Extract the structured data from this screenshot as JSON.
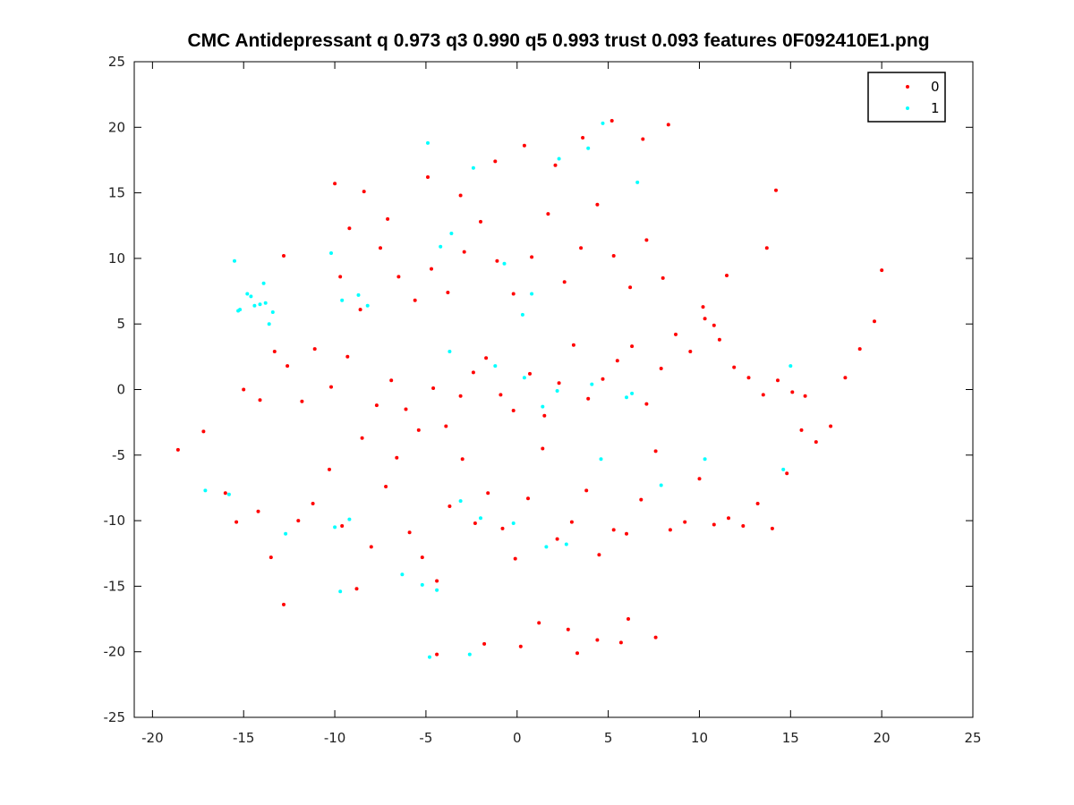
{
  "chart_data": {
    "type": "scatter",
    "title": "CMC Antidepressant q 0.973 q3 0.990 q5 0.993 trust 0.093 features 0F092410E1.png",
    "xlabel": "",
    "ylabel": "",
    "xlim": [
      -21,
      25
    ],
    "ylim": [
      -25,
      25
    ],
    "xticks": [
      -20,
      -15,
      -10,
      -5,
      0,
      5,
      10,
      15,
      20,
      25
    ],
    "yticks": [
      -25,
      -20,
      -15,
      -10,
      -5,
      0,
      5,
      10,
      15,
      20,
      25
    ],
    "grid": false,
    "legend_position": "top-right",
    "series": [
      {
        "name": "0",
        "color": "#ff0000",
        "x": [
          -18.6,
          -17.2,
          -16.0,
          -15.4,
          -14.2,
          -13.5,
          -12.8,
          -12.0,
          -11.2,
          -10.3,
          -9.6,
          -8.8,
          -8.0,
          -7.2,
          -6.6,
          -5.9,
          -5.2,
          -4.4,
          -3.7,
          -3.0,
          -2.3,
          -1.6,
          -0.8,
          -0.1,
          0.6,
          1.4,
          2.2,
          3.0,
          3.8,
          4.5,
          5.3,
          6.0,
          6.8,
          7.6,
          8.4,
          9.2,
          10.0,
          10.8,
          11.6,
          12.4,
          13.2,
          14.0,
          14.8,
          15.6,
          16.4,
          17.2,
          18.0,
          18.8,
          19.6,
          20.0,
          -15.0,
          -14.1,
          -13.3,
          -12.6,
          -11.8,
          -11.1,
          -10.2,
          -9.3,
          -8.5,
          -7.7,
          -6.9,
          -6.1,
          -5.4,
          -4.6,
          -3.9,
          -3.1,
          -2.4,
          -1.7,
          -0.9,
          -0.2,
          0.7,
          1.5,
          2.3,
          3.1,
          3.9,
          4.7,
          5.5,
          6.3,
          7.1,
          7.9,
          8.7,
          9.5,
          10.3,
          11.1,
          11.9,
          12.7,
          13.5,
          14.3,
          15.1,
          15.8,
          -10.0,
          -9.2,
          -8.4,
          -7.5,
          -6.5,
          -5.6,
          -4.7,
          -3.8,
          -2.9,
          -2.0,
          -1.1,
          -0.2,
          0.8,
          1.7,
          2.6,
          3.5,
          4.4,
          5.3,
          6.2,
          7.1,
          8.0,
          10.2,
          10.8,
          11.5,
          13.7,
          14.2,
          -12.8,
          -9.7,
          -8.6,
          -7.1,
          -4.9,
          -3.1,
          -1.2,
          0.4,
          2.1,
          3.6,
          5.2,
          6.9,
          8.3,
          1.2,
          2.8,
          4.4,
          6.1,
          7.6,
          -4.4,
          -1.8,
          0.2,
          3.3,
          5.7
        ],
        "y": [
          -4.6,
          -3.2,
          -7.9,
          -10.1,
          -9.3,
          -12.8,
          -16.4,
          -10.0,
          -8.7,
          -6.1,
          -10.4,
          -15.2,
          -12.0,
          -7.4,
          -5.2,
          -10.9,
          -12.8,
          -14.6,
          -8.9,
          -5.3,
          -10.2,
          -7.9,
          -10.6,
          -12.9,
          -8.3,
          -4.5,
          -11.4,
          -10.1,
          -7.7,
          -12.6,
          -10.7,
          -11.0,
          -8.4,
          -4.7,
          -10.7,
          -10.1,
          -6.8,
          -10.3,
          -9.8,
          -10.4,
          -8.7,
          -10.6,
          -6.4,
          -3.1,
          -4.0,
          -2.8,
          0.9,
          3.1,
          5.2,
          9.1,
          0.0,
          -0.8,
          2.9,
          1.8,
          -0.9,
          3.1,
          0.2,
          2.5,
          -3.7,
          -1.2,
          0.7,
          -1.5,
          -3.1,
          0.1,
          -2.8,
          -0.5,
          1.3,
          2.4,
          -0.4,
          -1.6,
          1.2,
          -2.0,
          0.5,
          3.4,
          -0.7,
          0.8,
          2.2,
          3.3,
          -1.1,
          1.6,
          4.2,
          2.9,
          5.4,
          3.8,
          1.7,
          0.9,
          -0.4,
          0.7,
          -0.2,
          -0.5,
          15.7,
          12.3,
          15.1,
          10.8,
          8.6,
          6.8,
          9.2,
          7.4,
          10.5,
          12.8,
          9.8,
          7.3,
          10.1,
          13.4,
          8.2,
          10.8,
          14.1,
          10.2,
          7.8,
          11.4,
          8.5,
          6.3,
          4.9,
          8.7,
          10.8,
          15.2,
          10.2,
          8.6,
          6.1,
          13.0,
          16.2,
          14.8,
          17.4,
          18.6,
          17.1,
          19.2,
          20.5,
          19.1,
          20.2,
          -17.8,
          -18.3,
          -19.1,
          -17.5,
          -18.9,
          -20.2,
          -19.4,
          -19.6,
          -20.1,
          -19.3
        ],
        "size": 2
      },
      {
        "name": "1",
        "color": "#00ffff",
        "x": [
          -15.2,
          -14.8,
          -14.4,
          -13.9,
          -13.6,
          -15.5,
          -14.6,
          -13.8,
          -10.2,
          -9.6,
          -8.7,
          -8.2,
          -4.9,
          -4.2,
          -3.6,
          -2.4,
          -0.7,
          0.3,
          0.8,
          2.3,
          3.9,
          4.7,
          6.6,
          -17.1,
          -15.8,
          -12.7,
          -10.0,
          -9.2,
          -6.3,
          -5.2,
          -4.4,
          -3.1,
          -2.0,
          -0.2,
          1.6,
          2.7,
          4.6,
          6.0,
          7.9,
          10.3,
          14.6,
          -3.7,
          -1.2,
          0.4,
          2.2,
          4.1,
          6.3,
          15.0,
          -14.1,
          -13.4,
          -15.3,
          -9.7,
          -4.8,
          -2.6,
          1.4
        ],
        "y": [
          6.1,
          7.3,
          6.4,
          8.1,
          5.0,
          9.8,
          7.1,
          6.6,
          10.4,
          6.8,
          7.2,
          6.4,
          18.8,
          10.9,
          11.9,
          16.9,
          9.6,
          5.7,
          7.3,
          17.6,
          18.4,
          20.3,
          15.8,
          -7.7,
          -8.0,
          -11.0,
          -10.5,
          -9.9,
          -14.1,
          -14.9,
          -15.3,
          -8.5,
          -9.8,
          -10.2,
          -12.0,
          -11.8,
          -5.3,
          -0.6,
          -7.3,
          -5.3,
          -6.1,
          2.9,
          1.8,
          0.9,
          -0.1,
          0.4,
          -0.3,
          1.8,
          6.5,
          5.9,
          6.0,
          -15.4,
          -20.4,
          -20.2,
          -1.3
        ],
        "size": 2
      }
    ]
  }
}
